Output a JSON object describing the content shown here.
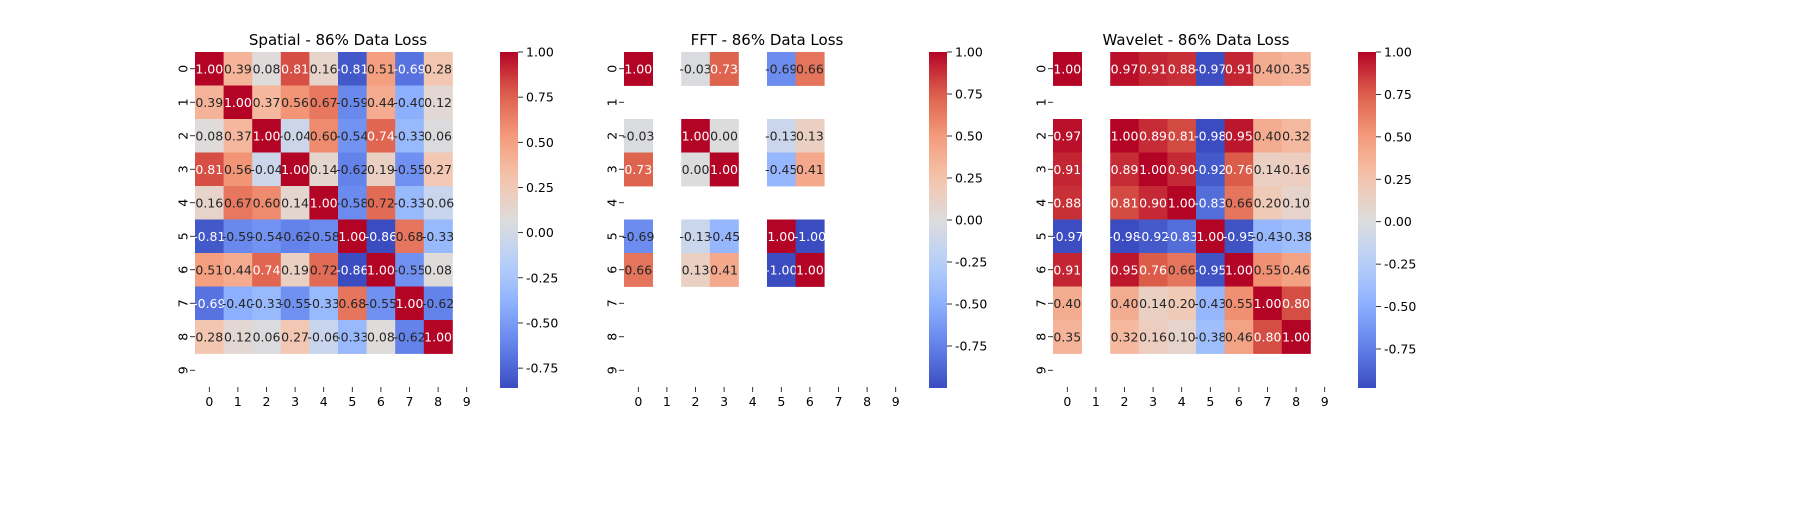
{
  "figure": {
    "background": "#ffffff"
  },
  "colormap": {
    "name": "coolwarm",
    "stops": [
      [
        0.0,
        "#3b4cc0"
      ],
      [
        0.125,
        "#6282ea"
      ],
      [
        0.25,
        "#8db0fe"
      ],
      [
        0.375,
        "#b8d0f9"
      ],
      [
        0.5,
        "#dddcdc"
      ],
      [
        0.625,
        "#f5c4ac"
      ],
      [
        0.75,
        "#f49a7b"
      ],
      [
        0.875,
        "#dd5f4b"
      ],
      [
        1.0,
        "#b40426"
      ]
    ]
  },
  "chart_data": [
    {
      "type": "heatmap",
      "title": "Spatial - 86% Data Loss",
      "x_ticks": [
        "0",
        "1",
        "2",
        "3",
        "4",
        "5",
        "6",
        "7",
        "8",
        "9"
      ],
      "y_ticks": [
        "0",
        "1",
        "2",
        "3",
        "4",
        "5",
        "6",
        "7",
        "8",
        "9"
      ],
      "colorbar": {
        "vmin": -0.86,
        "vmax": 1.0,
        "ticks": [
          "1.00",
          "0.75",
          "0.50",
          "0.25",
          "0.00",
          "-0.25",
          "-0.50",
          "-0.75"
        ]
      },
      "matrix": [
        [
          1.0,
          0.39,
          0.08,
          0.81,
          0.16,
          -0.81,
          0.51,
          -0.69,
          0.28,
          null
        ],
        [
          0.39,
          1.0,
          0.37,
          0.56,
          0.67,
          -0.59,
          0.44,
          -0.4,
          0.12,
          null
        ],
        [
          0.08,
          0.37,
          1.0,
          -0.04,
          0.6,
          -0.54,
          0.74,
          -0.33,
          0.06,
          null
        ],
        [
          0.81,
          0.56,
          -0.04,
          1.0,
          0.14,
          -0.62,
          0.19,
          -0.55,
          0.27,
          null
        ],
        [
          0.16,
          0.67,
          0.6,
          0.14,
          1.0,
          -0.58,
          0.72,
          -0.33,
          -0.06,
          null
        ],
        [
          -0.81,
          -0.59,
          -0.54,
          -0.62,
          -0.58,
          1.0,
          -0.86,
          0.68,
          -0.33,
          null
        ],
        [
          0.51,
          0.44,
          0.74,
          0.19,
          0.72,
          -0.86,
          1.0,
          -0.55,
          0.08,
          null
        ],
        [
          -0.69,
          -0.4,
          -0.33,
          -0.55,
          -0.33,
          0.68,
          -0.55,
          1.0,
          -0.62,
          null
        ],
        [
          0.28,
          0.12,
          0.06,
          0.27,
          -0.06,
          -0.33,
          0.08,
          -0.62,
          1.0,
          null
        ],
        [
          null,
          null,
          null,
          null,
          null,
          null,
          null,
          null,
          null,
          null
        ]
      ]
    },
    {
      "type": "heatmap",
      "title": "FFT - 86% Data Loss",
      "x_ticks": [
        "0",
        "1",
        "2",
        "3",
        "4",
        "5",
        "6",
        "7",
        "8",
        "9"
      ],
      "y_ticks": [
        "0",
        "1",
        "2",
        "3",
        "4",
        "5",
        "6",
        "7",
        "8",
        "9"
      ],
      "colorbar": {
        "vmin": -1.0,
        "vmax": 1.0,
        "ticks": [
          "1.00",
          "0.75",
          "0.50",
          "0.25",
          "0.00",
          "-0.25",
          "-0.50",
          "-0.75"
        ]
      },
      "matrix": [
        [
          1.0,
          null,
          -0.03,
          0.73,
          null,
          -0.69,
          0.66,
          null,
          null,
          null
        ],
        [
          null,
          null,
          null,
          null,
          null,
          null,
          null,
          null,
          null,
          null
        ],
        [
          -0.03,
          null,
          1.0,
          -0.0,
          null,
          -0.13,
          0.13,
          null,
          null,
          null
        ],
        [
          0.73,
          null,
          -0.0,
          1.0,
          null,
          -0.45,
          0.41,
          null,
          null,
          null
        ],
        [
          null,
          null,
          null,
          null,
          null,
          null,
          null,
          null,
          null,
          null
        ],
        [
          -0.69,
          null,
          -0.13,
          -0.45,
          null,
          1.0,
          -1.0,
          null,
          null,
          null
        ],
        [
          0.66,
          null,
          0.13,
          0.41,
          null,
          -1.0,
          1.0,
          null,
          null,
          null
        ],
        [
          null,
          null,
          null,
          null,
          null,
          null,
          null,
          null,
          null,
          null
        ],
        [
          null,
          null,
          null,
          null,
          null,
          null,
          null,
          null,
          null,
          null
        ],
        [
          null,
          null,
          null,
          null,
          null,
          null,
          null,
          null,
          null,
          null
        ]
      ]
    },
    {
      "type": "heatmap",
      "title": "Wavelet - 86% Data Loss",
      "x_ticks": [
        "0",
        "1",
        "2",
        "3",
        "4",
        "5",
        "6",
        "7",
        "8",
        "9"
      ],
      "y_ticks": [
        "0",
        "1",
        "2",
        "3",
        "4",
        "5",
        "6",
        "7",
        "8",
        "9"
      ],
      "colorbar": {
        "vmin": -0.98,
        "vmax": 1.0,
        "ticks": [
          "1.00",
          "0.75",
          "0.50",
          "0.25",
          "0.00",
          "-0.25",
          "-0.50",
          "-0.75"
        ]
      },
      "matrix": [
        [
          1.0,
          null,
          0.97,
          0.91,
          0.88,
          -0.97,
          0.91,
          0.4,
          0.35,
          null
        ],
        [
          null,
          null,
          null,
          null,
          null,
          null,
          null,
          null,
          null,
          null
        ],
        [
          0.97,
          null,
          1.0,
          0.89,
          0.81,
          -0.98,
          0.95,
          0.4,
          0.32,
          null
        ],
        [
          0.91,
          null,
          0.89,
          1.0,
          0.9,
          -0.92,
          0.76,
          0.14,
          0.16,
          null
        ],
        [
          0.88,
          null,
          0.81,
          0.9,
          1.0,
          -0.83,
          0.66,
          0.2,
          0.1,
          null
        ],
        [
          -0.97,
          null,
          -0.98,
          -0.92,
          -0.83,
          1.0,
          -0.95,
          -0.43,
          -0.38,
          null
        ],
        [
          0.91,
          null,
          0.95,
          0.76,
          0.66,
          -0.95,
          1.0,
          0.55,
          0.46,
          null
        ],
        [
          0.4,
          null,
          0.4,
          0.14,
          0.2,
          -0.43,
          0.55,
          1.0,
          0.8,
          null
        ],
        [
          0.35,
          null,
          0.32,
          0.16,
          0.1,
          -0.38,
          0.46,
          0.8,
          1.0,
          null
        ],
        [
          null,
          null,
          null,
          null,
          null,
          null,
          null,
          null,
          null,
          null
        ]
      ]
    }
  ]
}
